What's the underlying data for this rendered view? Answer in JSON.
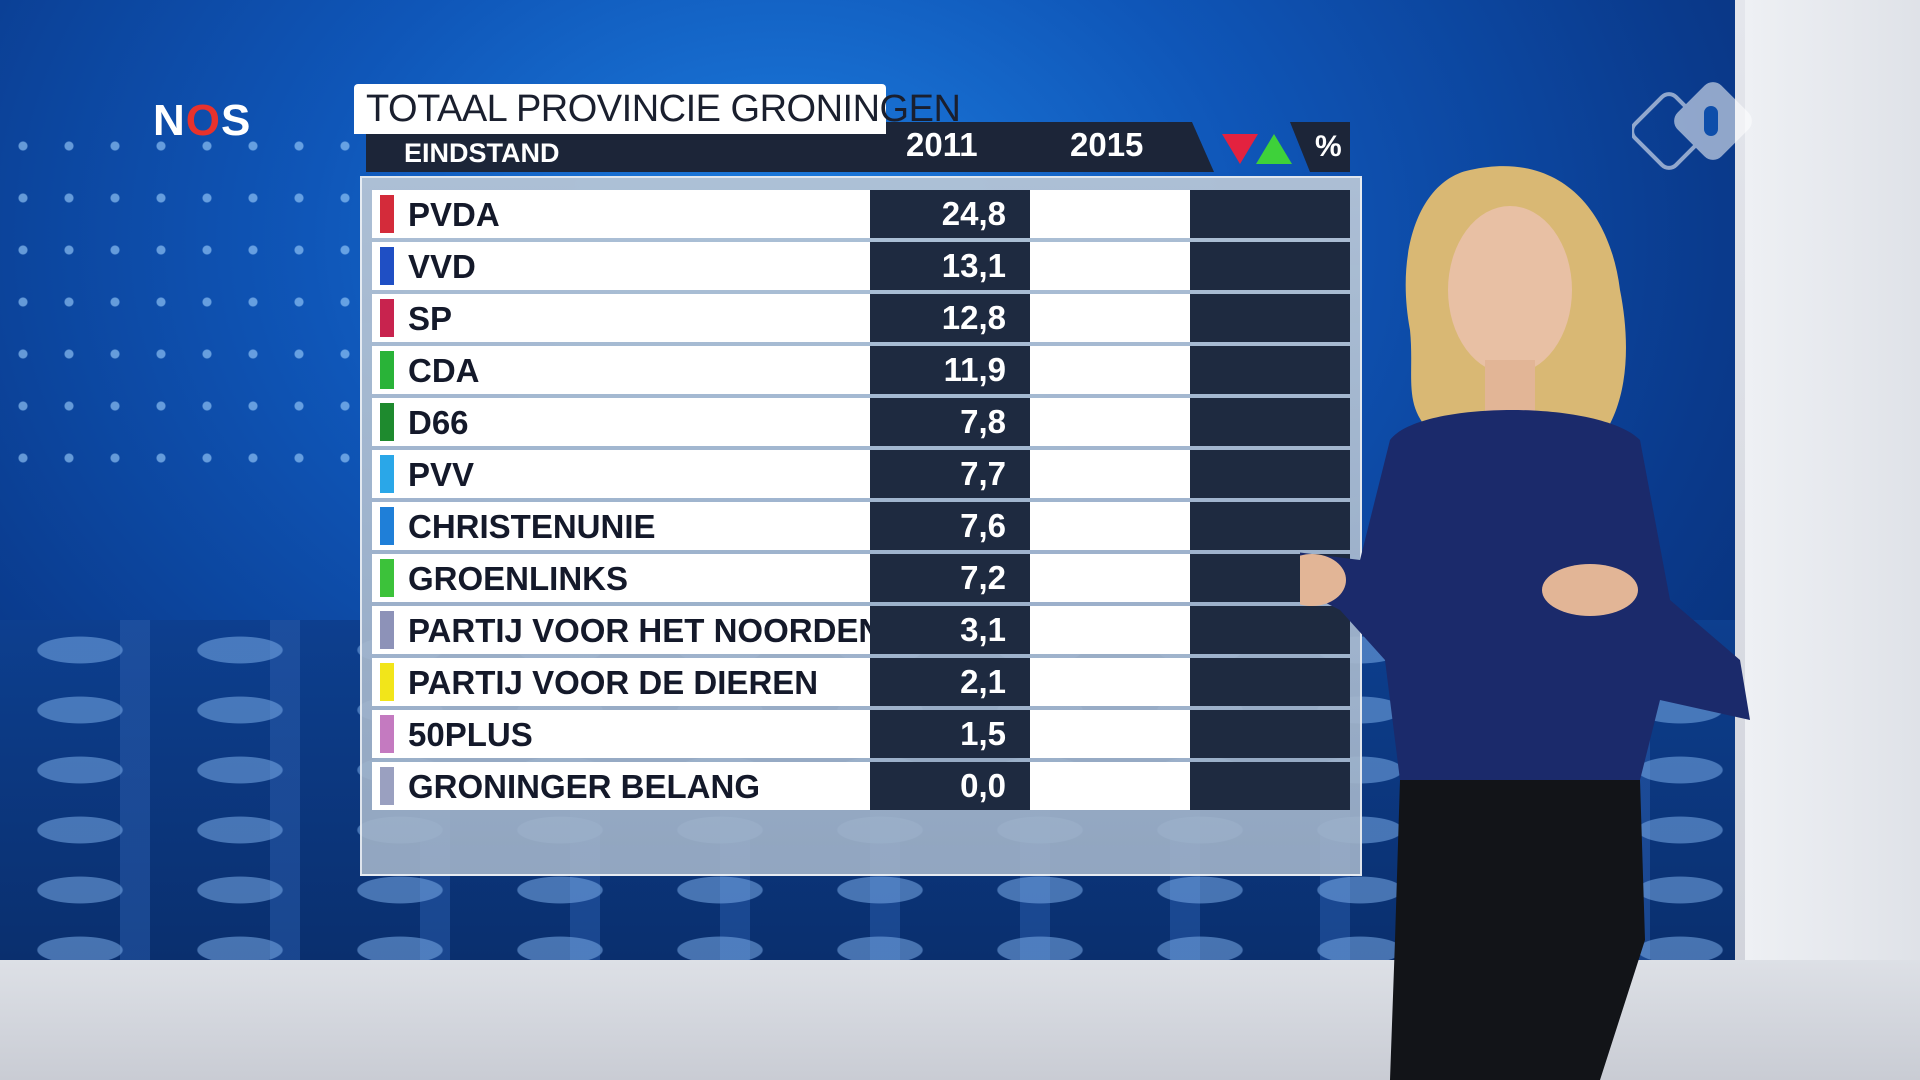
{
  "broadcaster_logo": {
    "text_n": "N",
    "text_o": "O",
    "text_s": "S"
  },
  "channel_logo": {
    "label": "npo"
  },
  "graphic": {
    "title": "TOTAAL PROVINCIE GRONINGEN",
    "subtitle": "EINDSTAND",
    "col_2011": "2011",
    "col_2015": "2015",
    "col_pct": "%",
    "down_color": "#e3223f",
    "up_color": "#3ed13a"
  },
  "chart_data": {
    "type": "table",
    "title": "TOTAAL PROVINCIE GRONINGEN",
    "subtitle": "EINDSTAND",
    "columns": [
      "2011",
      "2015",
      "%"
    ],
    "rows": [
      {
        "party": "PVDA",
        "color": "#d42b3a",
        "v2011": "24,8",
        "v2015": ""
      },
      {
        "party": "VVD",
        "color": "#1f4fc4",
        "v2011": "13,1",
        "v2015": ""
      },
      {
        "party": "SP",
        "color": "#c8234e",
        "v2011": "12,8",
        "v2015": ""
      },
      {
        "party": "CDA",
        "color": "#29b338",
        "v2011": "11,9",
        "v2015": ""
      },
      {
        "party": "D66",
        "color": "#1e8a2e",
        "v2011": "7,8",
        "v2015": ""
      },
      {
        "party": "PVV",
        "color": "#2aa7e8",
        "v2011": "7,7",
        "v2015": ""
      },
      {
        "party": "CHRISTENUNIE",
        "color": "#1f7fd8",
        "v2011": "7,6",
        "v2015": ""
      },
      {
        "party": "GROENLINKS",
        "color": "#3cc23a",
        "v2011": "7,2",
        "v2015": ""
      },
      {
        "party": "PARTIJ VOOR HET NOORDEN",
        "color": "#8d92b8",
        "v2011": "3,1",
        "v2015": ""
      },
      {
        "party": "PARTIJ VOOR DE DIEREN",
        "color": "#f2e51a",
        "v2011": "2,1",
        "v2015": ""
      },
      {
        "party": "50PLUS",
        "color": "#c47ac0",
        "v2011": "1,5",
        "v2015": ""
      },
      {
        "party": "GRONINGER BELANG",
        "color": "#9aa0c0",
        "v2011": "0,0",
        "v2015": ""
      }
    ]
  }
}
